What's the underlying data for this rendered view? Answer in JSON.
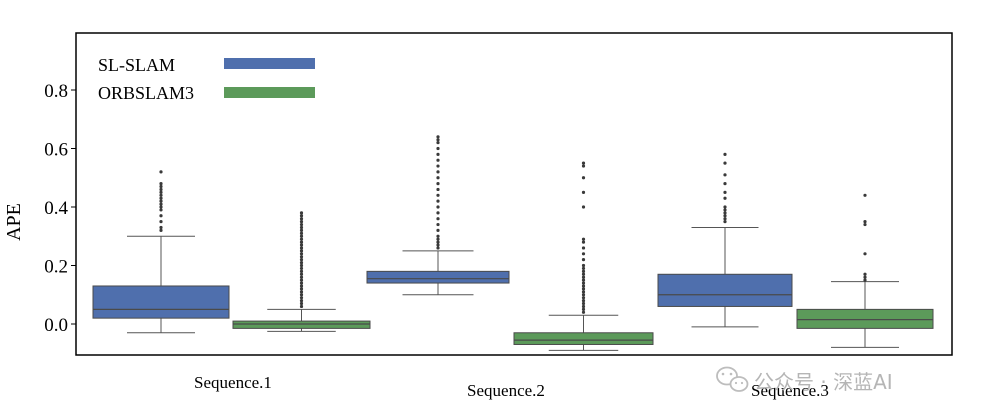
{
  "chart_data": {
    "type": "box",
    "title": "",
    "xlabel": "",
    "ylabel": "APE",
    "ylim": [
      -0.1,
      0.95
    ],
    "yticks": [
      0.0,
      0.2,
      0.4,
      0.6,
      0.8
    ],
    "ytick_labels": [
      "0.0",
      "0.2",
      "0.4",
      "0.6",
      "0.8"
    ],
    "categories": [
      "Sequence.1",
      "Sequence.2",
      "Sequence.3"
    ],
    "legend_position": "top-left",
    "series": [
      {
        "name": "SL-SLAM",
        "color": "#4f6fad",
        "boxes": [
          {
            "whisker_low": -0.03,
            "q1": 0.02,
            "median": 0.05,
            "q3": 0.13,
            "whisker_high": 0.3,
            "outliers": [
              0.32,
              0.33,
              0.35,
              0.37,
              0.39,
              0.4,
              0.41,
              0.42,
              0.43,
              0.44,
              0.45,
              0.46,
              0.47,
              0.48,
              0.52
            ]
          },
          {
            "whisker_low": 0.1,
            "q1": 0.14,
            "median": 0.155,
            "q3": 0.18,
            "whisker_high": 0.25,
            "outliers": [
              0.26,
              0.27,
              0.28,
              0.29,
              0.3,
              0.32,
              0.34,
              0.36,
              0.38,
              0.4,
              0.42,
              0.44,
              0.46,
              0.48,
              0.5,
              0.52,
              0.54,
              0.56,
              0.58,
              0.6,
              0.62,
              0.63,
              0.64
            ]
          },
          {
            "whisker_low": -0.01,
            "q1": 0.06,
            "median": 0.1,
            "q3": 0.17,
            "whisker_high": 0.33,
            "outliers": [
              0.35,
              0.36,
              0.37,
              0.38,
              0.39,
              0.4,
              0.43,
              0.45,
              0.48,
              0.51,
              0.55,
              0.58
            ]
          }
        ]
      },
      {
        "name": "ORBSLAM3",
        "color": "#5c9a5a",
        "boxes": [
          {
            "whisker_low": -0.025,
            "q1": -0.015,
            "median": 0.0,
            "q3": 0.01,
            "whisker_high": 0.05,
            "outliers": [
              0.06,
              0.07,
              0.08,
              0.09,
              0.1,
              0.11,
              0.12,
              0.13,
              0.14,
              0.15,
              0.16,
              0.17,
              0.18,
              0.19,
              0.2,
              0.21,
              0.22,
              0.23,
              0.24,
              0.25,
              0.26,
              0.27,
              0.28,
              0.29,
              0.3,
              0.31,
              0.32,
              0.33,
              0.34,
              0.35,
              0.36,
              0.37,
              0.38
            ]
          },
          {
            "whisker_low": -0.09,
            "q1": -0.07,
            "median": -0.055,
            "q3": -0.03,
            "whisker_high": 0.03,
            "outliers": [
              0.04,
              0.05,
              0.06,
              0.07,
              0.08,
              0.09,
              0.1,
              0.11,
              0.12,
              0.13,
              0.14,
              0.15,
              0.16,
              0.17,
              0.18,
              0.19,
              0.2,
              0.22,
              0.24,
              0.26,
              0.28,
              0.29,
              0.4,
              0.45,
              0.5,
              0.54,
              0.55
            ]
          },
          {
            "whisker_low": -0.08,
            "q1": -0.015,
            "median": 0.015,
            "q3": 0.05,
            "whisker_high": 0.145,
            "outliers": [
              0.15,
              0.16,
              0.17,
              0.24,
              0.34,
              0.35,
              0.44
            ]
          }
        ]
      }
    ]
  },
  "watermark": {
    "text": "公众号 · 深蓝AI",
    "icon": "wechat-icon"
  }
}
